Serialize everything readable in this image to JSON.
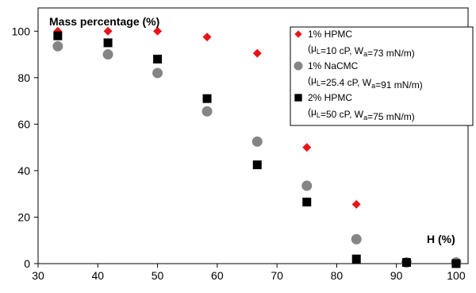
{
  "chart_data": {
    "type": "scatter",
    "title": "",
    "ylabel": "Mass percentage (%)",
    "xlabel": "H (%)",
    "xlim": [
      30,
      102
    ],
    "ylim": [
      0,
      110
    ],
    "x_ticks": [
      30,
      40,
      50,
      60,
      70,
      80,
      90,
      100
    ],
    "y_ticks": [
      0,
      20,
      40,
      60,
      80,
      100
    ],
    "grid": false,
    "legend_position": "top-right",
    "series": [
      {
        "name": "1% HPMC",
        "detail": {
          "mu_label": "μ",
          "mu_sub": "L",
          "mu_value": "=10 cP, W",
          "w_sub": "a",
          "w_value": "=73 mN/m)"
        },
        "marker": "diamond",
        "color": "#e8141a",
        "x": [
          33.3,
          41.7,
          50,
          58.3,
          66.7,
          75,
          83.3,
          91.7,
          100
        ],
        "y": [
          100,
          100,
          100,
          97.5,
          90.5,
          50,
          25.5,
          0.5,
          0
        ]
      },
      {
        "name": "1% NaCMC",
        "detail": {
          "mu_label": "μ",
          "mu_sub": "L",
          "mu_value": "=25.4 cP, W",
          "w_sub": "a",
          "w_value": "=91 mN/m)"
        },
        "marker": "circle",
        "color": "#858585",
        "x": [
          33.3,
          41.7,
          50,
          58.3,
          66.7,
          75,
          83.3,
          91.7,
          100
        ],
        "y": [
          93.5,
          90,
          82,
          65.5,
          52.5,
          33.5,
          10.5,
          0.5,
          0.5
        ]
      },
      {
        "name": "2% HPMC",
        "detail": {
          "mu_label": "μ",
          "mu_sub": "L",
          "mu_value": "=50 cP, W",
          "w_sub": "a",
          "w_value": "=75 mN/m)"
        },
        "marker": "square",
        "color": "#000000",
        "x": [
          33.3,
          41.7,
          50,
          58.3,
          66.7,
          75,
          83.3,
          91.7,
          100
        ],
        "y": [
          98,
          95,
          88,
          71,
          42.5,
          26.5,
          2,
          0.5,
          0
        ]
      }
    ]
  }
}
